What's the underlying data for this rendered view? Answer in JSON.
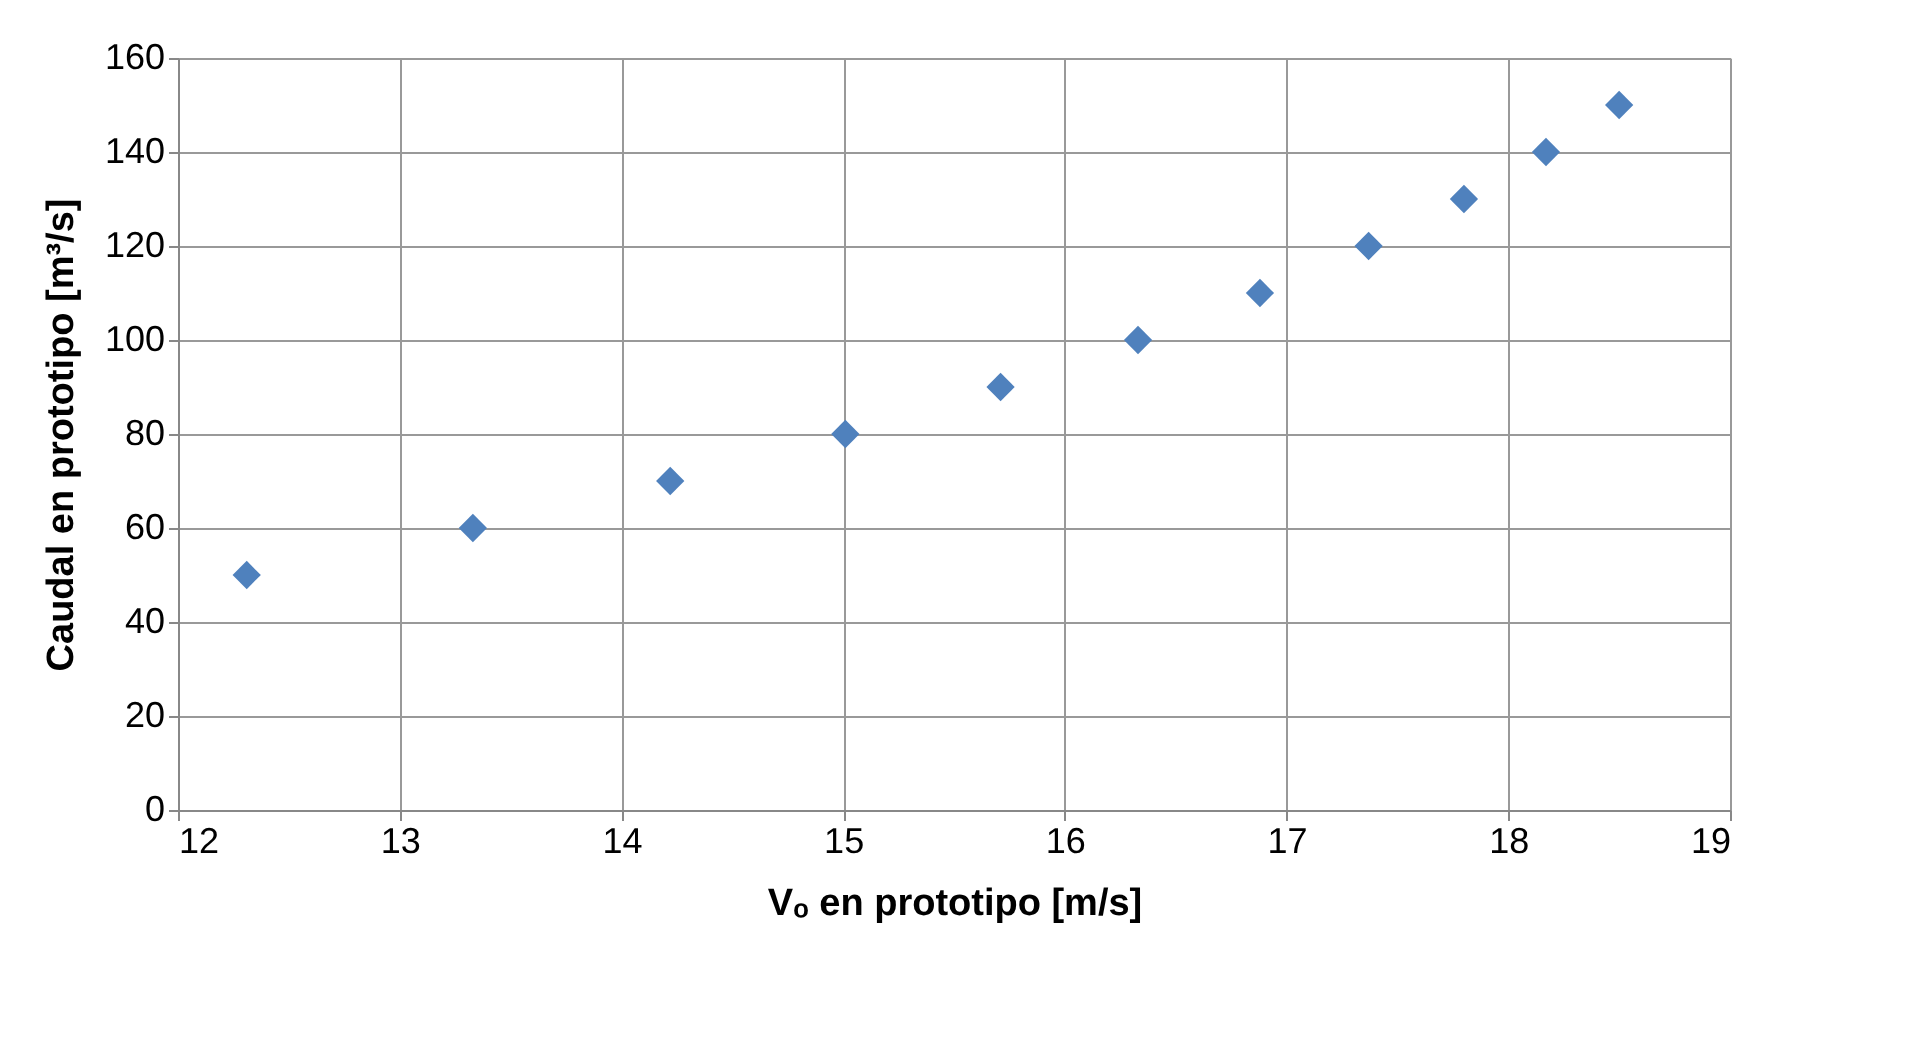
{
  "chart_data": {
    "type": "scatter",
    "xlabel": "Vₒ en prototipo [m/s]",
    "ylabel": "Caudal en prototipo [m³/s]",
    "x": [
      12.31,
      13.33,
      14.22,
      15.01,
      15.71,
      16.33,
      16.88,
      17.37,
      17.8,
      18.17,
      18.5
    ],
    "series": [
      {
        "color": "#4f81bd",
        "values": [
          50,
          60,
          70,
          80,
          90,
          100,
          110,
          120,
          130,
          140,
          150
        ]
      }
    ],
    "xlim": [
      12,
      19
    ],
    "xticks": [
      12,
      13,
      14,
      15,
      16,
      17,
      18,
      19
    ],
    "ylim": [
      0,
      160
    ],
    "yticks": [
      0,
      20,
      40,
      60,
      80,
      100,
      120,
      140,
      160
    ],
    "grid": true,
    "legend": false,
    "marker": "diamond"
  }
}
